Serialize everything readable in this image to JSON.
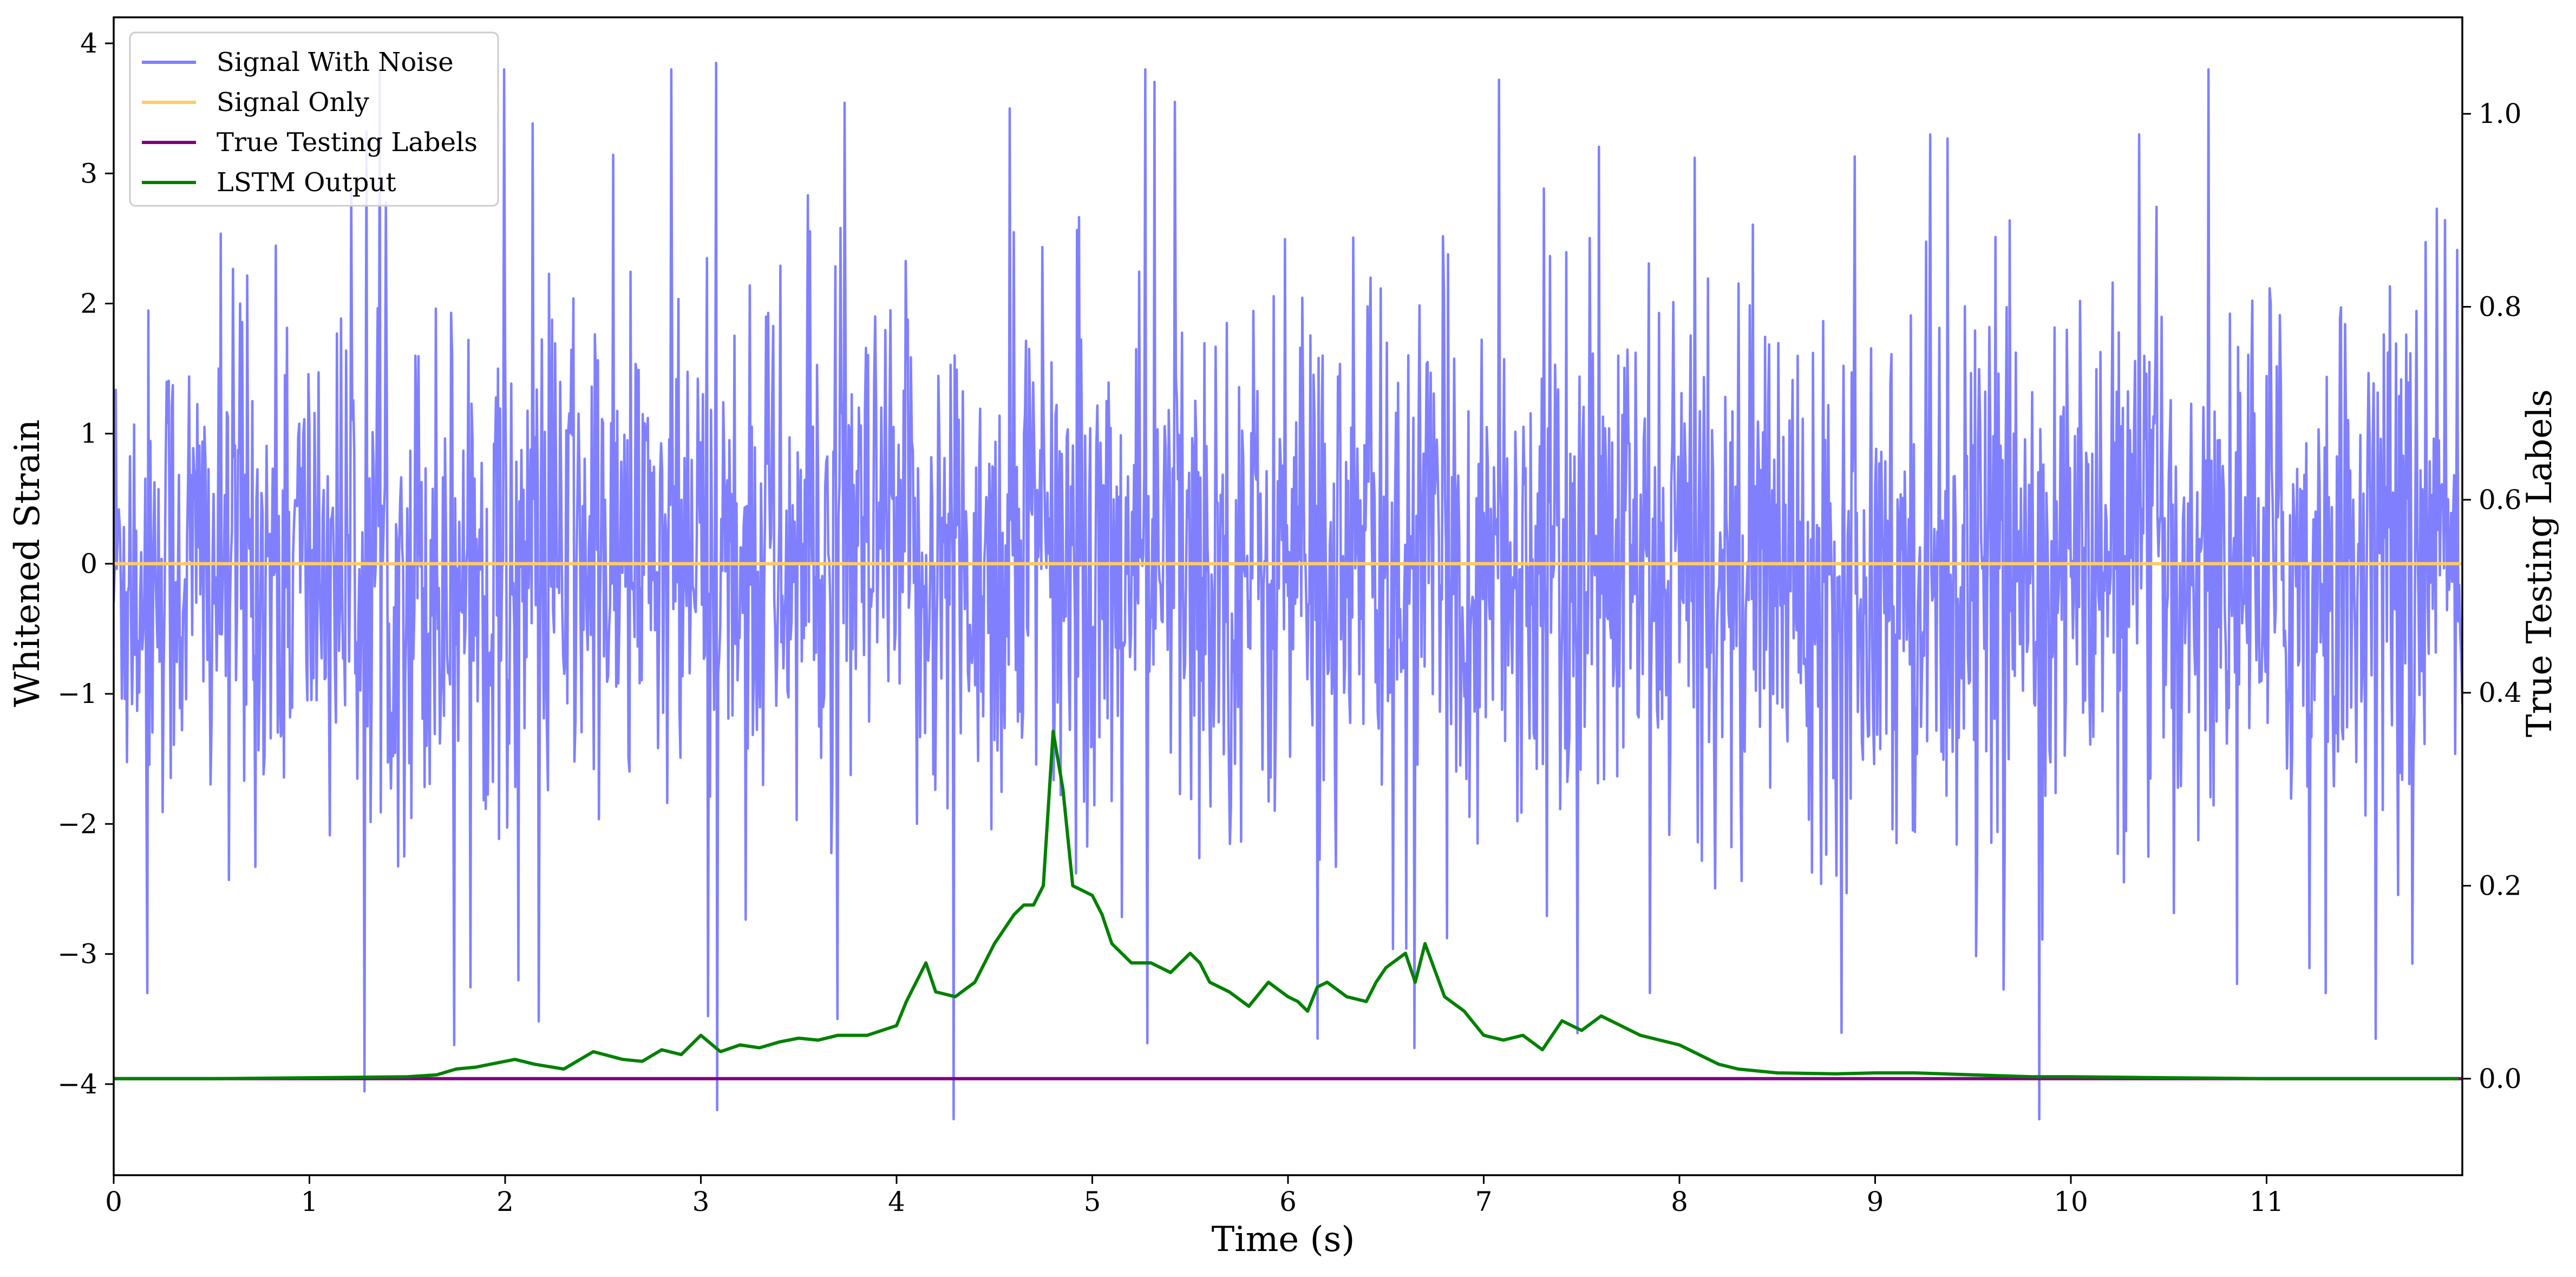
{
  "chart_data": {
    "type": "line",
    "xlabel": "Time (s)",
    "ylabel_left": "Whitened Strain",
    "ylabel_right": "True Testing Labels",
    "xlim": [
      0,
      12
    ],
    "ylim_left": [
      -4.7,
      4.2
    ],
    "ylim_right": [
      -0.1,
      1.1
    ],
    "x_ticks": [
      0,
      1,
      2,
      3,
      4,
      5,
      6,
      7,
      8,
      9,
      10,
      11
    ],
    "x_tick_labels": [
      "0",
      "1",
      "2",
      "3",
      "4",
      "5",
      "6",
      "7",
      "8",
      "9",
      "10",
      "11"
    ],
    "y_left_ticks": [
      4,
      3,
      2,
      1,
      0,
      -1,
      -2,
      -3,
      -4
    ],
    "y_left_tick_labels": [
      "4",
      "3",
      "2",
      "1",
      "0",
      "−1",
      "−2",
      "−3",
      "−4"
    ],
    "y_right_ticks": [
      1.0,
      0.8,
      0.6,
      0.4,
      0.2,
      0.0
    ],
    "y_right_tick_labels": [
      "1.0",
      "0.8",
      "0.6",
      "0.4",
      "0.2",
      "0.0"
    ],
    "grid": false,
    "legend_position": "top-left",
    "series": [
      {
        "name": "Signal With Noise",
        "axis": "left",
        "color": "#8080ff",
        "rendering": "dense noise, approx. 16 samples per unit time, amplitude ~1.2, spikes between about -4.3 and 3.85",
        "samples_per_unit": 16,
        "noise_amplitude": 1.2,
        "spikes": [
          {
            "x": 0.17,
            "y": -3.3
          },
          {
            "x": 1.74,
            "y": -3.7
          },
          {
            "x": 2.85,
            "y": 3.8
          },
          {
            "x": 3.08,
            "y": 3.85
          },
          {
            "x": 3.7,
            "y": -3.5
          },
          {
            "x": 4.29,
            "y": -4.27
          },
          {
            "x": 4.58,
            "y": 3.5
          },
          {
            "x": 5.42,
            "y": 3.55
          },
          {
            "x": 6.15,
            "y": -3.65
          },
          {
            "x": 7.08,
            "y": 3.72
          },
          {
            "x": 7.85,
            "y": -3.3
          },
          {
            "x": 9.28,
            "y": 3.3
          },
          {
            "x": 9.84,
            "y": -4.27
          },
          {
            "x": 10.35,
            "y": 3.3
          },
          {
            "x": 11.3,
            "y": -3.3
          }
        ]
      },
      {
        "name": "Signal Only",
        "axis": "left",
        "color": "#ffcc66",
        "x": [
          0,
          12
        ],
        "y": [
          0,
          0
        ]
      },
      {
        "name": "True Testing Labels",
        "axis": "right",
        "color": "#800080",
        "x": [
          0,
          12
        ],
        "y": [
          0,
          0
        ]
      },
      {
        "name": "LSTM Output",
        "axis": "right",
        "color": "#008000",
        "x": [
          0,
          0.5,
          1.0,
          1.5,
          1.65,
          1.75,
          1.85,
          1.95,
          2.05,
          2.15,
          2.3,
          2.45,
          2.6,
          2.7,
          2.8,
          2.9,
          3.0,
          3.1,
          3.2,
          3.3,
          3.4,
          3.5,
          3.6,
          3.7,
          3.85,
          4.0,
          4.05,
          4.1,
          4.15,
          4.2,
          4.3,
          4.4,
          4.5,
          4.6,
          4.65,
          4.7,
          4.75,
          4.8,
          4.85,
          4.9,
          5.0,
          5.05,
          5.1,
          5.2,
          5.3,
          5.4,
          5.5,
          5.55,
          5.6,
          5.7,
          5.8,
          5.9,
          6.0,
          6.05,
          6.1,
          6.15,
          6.2,
          6.3,
          6.4,
          6.45,
          6.5,
          6.6,
          6.65,
          6.7,
          6.8,
          6.9,
          7.0,
          7.1,
          7.2,
          7.3,
          7.4,
          7.5,
          7.6,
          7.7,
          7.8,
          8.0,
          8.2,
          8.3,
          8.5,
          8.8,
          9.0,
          9.2,
          9.5,
          9.8,
          10.0,
          10.5,
          11.0,
          11.5,
          11.98
        ],
        "y": [
          0.0,
          0.0,
          0.001,
          0.002,
          0.004,
          0.01,
          0.012,
          0.016,
          0.02,
          0.015,
          0.01,
          0.028,
          0.02,
          0.018,
          0.03,
          0.025,
          0.045,
          0.028,
          0.035,
          0.032,
          0.038,
          0.042,
          0.04,
          0.045,
          0.045,
          0.055,
          0.08,
          0.1,
          0.12,
          0.09,
          0.085,
          0.1,
          0.14,
          0.17,
          0.18,
          0.18,
          0.2,
          0.36,
          0.3,
          0.2,
          0.19,
          0.17,
          0.14,
          0.12,
          0.12,
          0.11,
          0.13,
          0.12,
          0.1,
          0.09,
          0.075,
          0.1,
          0.085,
          0.08,
          0.07,
          0.095,
          0.1,
          0.085,
          0.08,
          0.1,
          0.115,
          0.13,
          0.1,
          0.14,
          0.085,
          0.07,
          0.045,
          0.04,
          0.045,
          0.03,
          0.06,
          0.05,
          0.065,
          0.055,
          0.045,
          0.035,
          0.015,
          0.01,
          0.006,
          0.005,
          0.006,
          0.006,
          0.004,
          0.002,
          0.002,
          0.001,
          0.0,
          0.0,
          0.0
        ]
      }
    ]
  }
}
